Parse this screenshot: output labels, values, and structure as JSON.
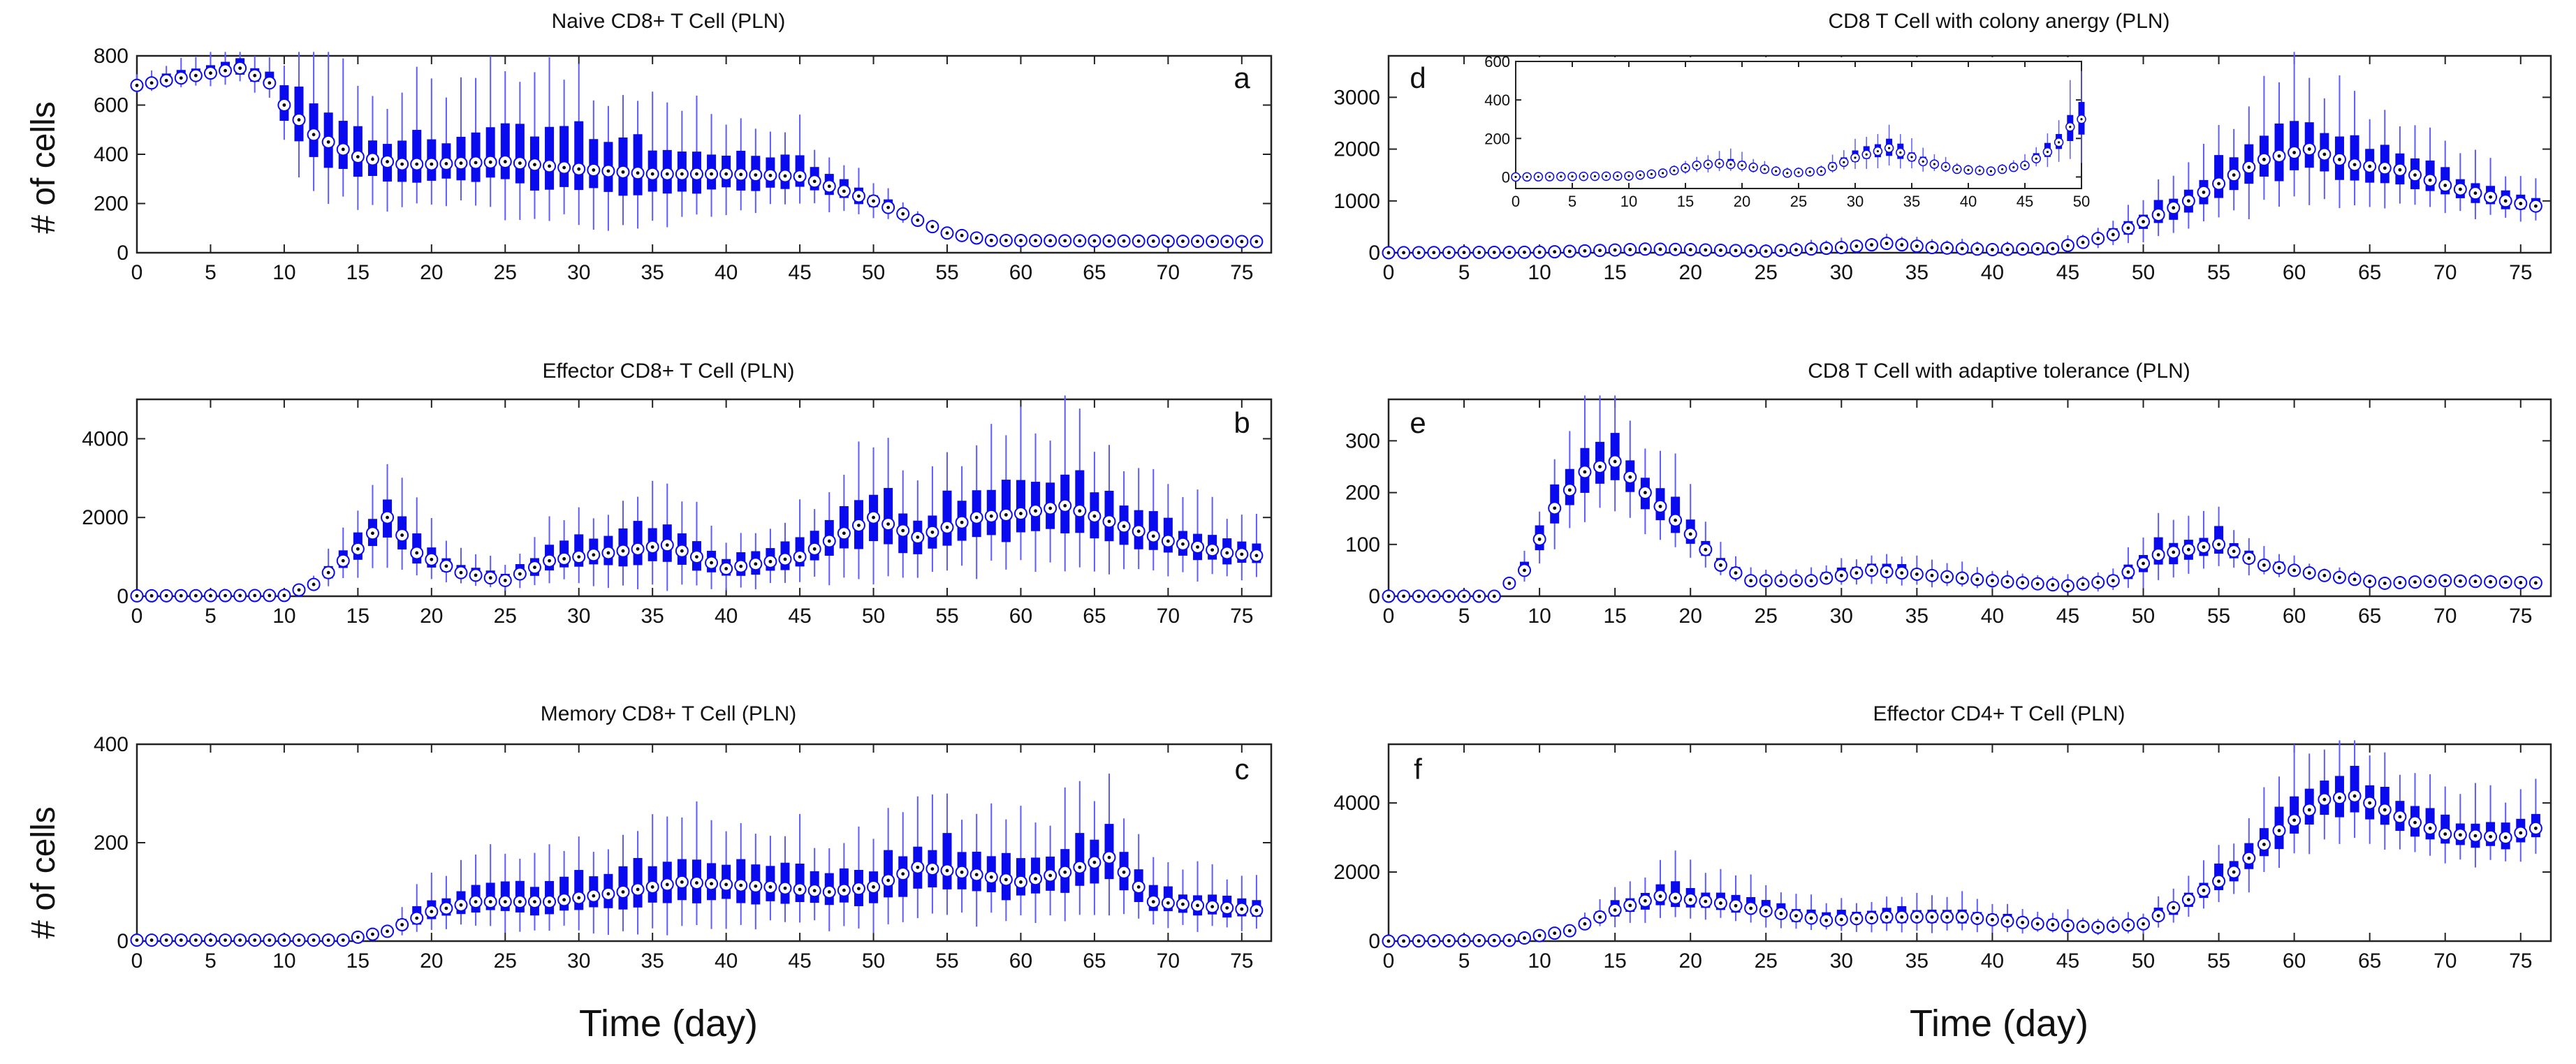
{
  "figure": {
    "ylabel_left_top": "# of cells",
    "ylabel_left_bottom": "# of cells",
    "xlabel_left": "Time (day)",
    "xlabel_right": "Time (day)"
  },
  "colors": {
    "box": "#0a0aee",
    "whisker": "#5c5cff",
    "median_fill": "#ffffff",
    "median_dot": "#000000",
    "axis": "#222222"
  },
  "chart_data": [
    {
      "id": "a",
      "type": "box",
      "title": "Naive CD8+ T Cell (PLN)",
      "panel_label": "a",
      "xlim": [
        0,
        77
      ],
      "ylim": [
        0,
        800
      ],
      "xticks": [
        0,
        5,
        10,
        15,
        20,
        25,
        30,
        35,
        40,
        45,
        50,
        55,
        60,
        65,
        70,
        75
      ],
      "yticks": [
        0,
        200,
        400,
        600,
        800
      ],
      "knots": [
        [
          0,
          680
        ],
        [
          7,
          750
        ],
        [
          9,
          690
        ],
        [
          10,
          600
        ],
        [
          12,
          480
        ],
        [
          15,
          390
        ],
        [
          18,
          360
        ],
        [
          20,
          360
        ],
        [
          25,
          370
        ],
        [
          30,
          340
        ],
        [
          35,
          320
        ],
        [
          40,
          320
        ],
        [
          45,
          310
        ],
        [
          50,
          210
        ],
        [
          55,
          80
        ],
        [
          58,
          50
        ],
        [
          77,
          45
        ]
      ],
      "spread": [
        [
          0,
          0.05
        ],
        [
          9,
          0.1
        ],
        [
          12,
          0.6
        ],
        [
          20,
          0.6
        ],
        [
          30,
          0.8
        ],
        [
          45,
          0.5
        ],
        [
          55,
          0.2
        ],
        [
          60,
          0.05
        ],
        [
          77,
          0.05
        ]
      ]
    },
    {
      "id": "b",
      "type": "box",
      "title": "Effector CD8+ T Cell (PLN)",
      "panel_label": "b",
      "xlim": [
        0,
        77
      ],
      "ylim": [
        0,
        5000
      ],
      "xticks": [
        0,
        5,
        10,
        15,
        20,
        25,
        30,
        35,
        40,
        45,
        50,
        55,
        60,
        65,
        70,
        75
      ],
      "yticks": [
        0,
        2000,
        4000
      ],
      "knots": [
        [
          0,
          10
        ],
        [
          10,
          20
        ],
        [
          12,
          300
        ],
        [
          15,
          1200
        ],
        [
          17,
          2000
        ],
        [
          19,
          1100
        ],
        [
          22,
          600
        ],
        [
          25,
          400
        ],
        [
          28,
          900
        ],
        [
          32,
          1100
        ],
        [
          36,
          1300
        ],
        [
          40,
          700
        ],
        [
          45,
          1000
        ],
        [
          50,
          2000
        ],
        [
          53,
          1500
        ],
        [
          57,
          2000
        ],
        [
          60,
          2100
        ],
        [
          63,
          2300
        ],
        [
          66,
          1900
        ],
        [
          70,
          1400
        ],
        [
          74,
          1100
        ],
        [
          77,
          1000
        ]
      ],
      "spread": [
        [
          0,
          0
        ],
        [
          10,
          0
        ],
        [
          12,
          0.6
        ],
        [
          17,
          0.7
        ],
        [
          25,
          0.7
        ],
        [
          35,
          0.9
        ],
        [
          45,
          0.9
        ],
        [
          55,
          0.9
        ],
        [
          65,
          0.9
        ],
        [
          77,
          0.7
        ]
      ]
    },
    {
      "id": "c",
      "type": "box",
      "title": "Memory CD8+ T Cell (PLN)",
      "panel_label": "c",
      "xlim": [
        0,
        77
      ],
      "ylim": [
        0,
        400
      ],
      "xticks": [
        0,
        5,
        10,
        15,
        20,
        25,
        30,
        35,
        40,
        45,
        50,
        55,
        60,
        65,
        70,
        75
      ],
      "yticks": [
        0,
        200,
        400
      ],
      "knots": [
        [
          0,
          2
        ],
        [
          14,
          2
        ],
        [
          17,
          20
        ],
        [
          20,
          60
        ],
        [
          23,
          80
        ],
        [
          28,
          80
        ],
        [
          33,
          100
        ],
        [
          37,
          120
        ],
        [
          43,
          110
        ],
        [
          47,
          100
        ],
        [
          50,
          110
        ],
        [
          53,
          150
        ],
        [
          56,
          140
        ],
        [
          60,
          120
        ],
        [
          63,
          140
        ],
        [
          66,
          170
        ],
        [
          69,
          80
        ],
        [
          73,
          70
        ],
        [
          77,
          60
        ]
      ],
      "spread": [
        [
          0,
          0
        ],
        [
          15,
          0.1
        ],
        [
          18,
          0.8
        ],
        [
          30,
          0.9
        ],
        [
          45,
          0.9
        ],
        [
          60,
          0.9
        ],
        [
          77,
          0.8
        ]
      ]
    },
    {
      "id": "d",
      "type": "box",
      "title": "CD8 T Cell with colony anergy (PLN)",
      "panel_label": "d",
      "xlim": [
        0,
        77
      ],
      "ylim": [
        0,
        3800
      ],
      "xticks": [
        0,
        5,
        10,
        15,
        20,
        25,
        30,
        35,
        40,
        45,
        50,
        55,
        60,
        65,
        70,
        75
      ],
      "yticks": [
        0,
        1000,
        2000,
        3000
      ],
      "knots": [
        [
          0,
          0
        ],
        [
          10,
          10
        ],
        [
          17,
          70
        ],
        [
          20,
          60
        ],
        [
          25,
          30
        ],
        [
          30,
          100
        ],
        [
          33,
          180
        ],
        [
          36,
          100
        ],
        [
          40,
          60
        ],
        [
          44,
          80
        ],
        [
          46,
          200
        ],
        [
          48,
          350
        ],
        [
          50,
          600
        ],
        [
          53,
          1000
        ],
        [
          56,
          1500
        ],
        [
          58,
          1800
        ],
        [
          61,
          2000
        ],
        [
          64,
          1700
        ],
        [
          67,
          1600
        ],
        [
          70,
          1300
        ],
        [
          74,
          1000
        ],
        [
          77,
          850
        ]
      ],
      "spread": [
        [
          0,
          0
        ],
        [
          15,
          0.1
        ],
        [
          30,
          0.8
        ],
        [
          45,
          0.8
        ],
        [
          50,
          0.7
        ],
        [
          60,
          0.7
        ],
        [
          77,
          0.4
        ]
      ]
    },
    {
      "id": "d_inset",
      "type": "box",
      "title": "",
      "xlim": [
        0,
        50
      ],
      "ylim": [
        -60,
        600
      ],
      "xticks": [
        0,
        5,
        10,
        15,
        20,
        25,
        30,
        35,
        40,
        45,
        50
      ],
      "yticks": [
        0,
        200,
        400,
        600
      ],
      "knots": [
        [
          0,
          0
        ],
        [
          10,
          5
        ],
        [
          13,
          20
        ],
        [
          16,
          60
        ],
        [
          18,
          70
        ],
        [
          20,
          60
        ],
        [
          24,
          20
        ],
        [
          27,
          30
        ],
        [
          30,
          100
        ],
        [
          33,
          150
        ],
        [
          36,
          80
        ],
        [
          39,
          40
        ],
        [
          42,
          30
        ],
        [
          45,
          60
        ],
        [
          47,
          130
        ],
        [
          48,
          180
        ],
        [
          49,
          260
        ],
        [
          50,
          300
        ]
      ],
      "spread": [
        [
          0,
          0
        ],
        [
          10,
          0.1
        ],
        [
          15,
          0.7
        ],
        [
          30,
          0.7
        ],
        [
          45,
          0.6
        ],
        [
          50,
          0.8
        ]
      ]
    },
    {
      "id": "e",
      "type": "box",
      "title": "CD8 T Cell with adaptive tolerance (PLN)",
      "panel_label": "e",
      "xlim": [
        0,
        77
      ],
      "ylim": [
        0,
        380
      ],
      "xticks": [
        0,
        5,
        10,
        15,
        20,
        25,
        30,
        35,
        40,
        45,
        50,
        55,
        60,
        65,
        70,
        75
      ],
      "yticks": [
        0,
        100,
        200,
        300
      ],
      "knots": [
        [
          0,
          0
        ],
        [
          7,
          0
        ],
        [
          9,
          50
        ],
        [
          11,
          170
        ],
        [
          13,
          240
        ],
        [
          15,
          260
        ],
        [
          17,
          200
        ],
        [
          20,
          120
        ],
        [
          22,
          60
        ],
        [
          24,
          30
        ],
        [
          28,
          30
        ],
        [
          32,
          50
        ],
        [
          36,
          40
        ],
        [
          40,
          30
        ],
        [
          45,
          20
        ],
        [
          48,
          30
        ],
        [
          51,
          80
        ],
        [
          55,
          100
        ],
        [
          58,
          60
        ],
        [
          62,
          40
        ],
        [
          66,
          25
        ],
        [
          70,
          30
        ],
        [
          77,
          25
        ]
      ],
      "spread": [
        [
          0,
          0
        ],
        [
          7,
          0
        ],
        [
          9,
          0.5
        ],
        [
          15,
          0.4
        ],
        [
          20,
          0.5
        ],
        [
          25,
          0.5
        ],
        [
          40,
          0.6
        ],
        [
          50,
          0.8
        ],
        [
          60,
          0.4
        ],
        [
          77,
          0.3
        ]
      ]
    },
    {
      "id": "f",
      "type": "box",
      "title": "Effector CD4+ T Cell (PLN)",
      "panel_label": "f",
      "xlim": [
        0,
        77
      ],
      "ylim": [
        0,
        5700
      ],
      "xticks": [
        0,
        5,
        10,
        15,
        20,
        25,
        30,
        35,
        40,
        45,
        50,
        55,
        60,
        65,
        70,
        75
      ],
      "yticks": [
        0,
        2000,
        4000
      ],
      "knots": [
        [
          0,
          0
        ],
        [
          8,
          20
        ],
        [
          12,
          300
        ],
        [
          15,
          900
        ],
        [
          18,
          1300
        ],
        [
          22,
          1100
        ],
        [
          26,
          800
        ],
        [
          29,
          600
        ],
        [
          33,
          700
        ],
        [
          38,
          700
        ],
        [
          43,
          500
        ],
        [
          47,
          400
        ],
        [
          50,
          500
        ],
        [
          53,
          1200
        ],
        [
          56,
          2000
        ],
        [
          59,
          3200
        ],
        [
          62,
          4100
        ],
        [
          64,
          4200
        ],
        [
          67,
          3600
        ],
        [
          70,
          3100
        ],
        [
          74,
          3000
        ],
        [
          77,
          3400
        ]
      ],
      "spread": [
        [
          0,
          0
        ],
        [
          10,
          0.1
        ],
        [
          15,
          0.6
        ],
        [
          25,
          0.6
        ],
        [
          40,
          0.7
        ],
        [
          50,
          0.6
        ],
        [
          55,
          0.5
        ],
        [
          63,
          0.4
        ],
        [
          77,
          0.3
        ]
      ]
    }
  ]
}
